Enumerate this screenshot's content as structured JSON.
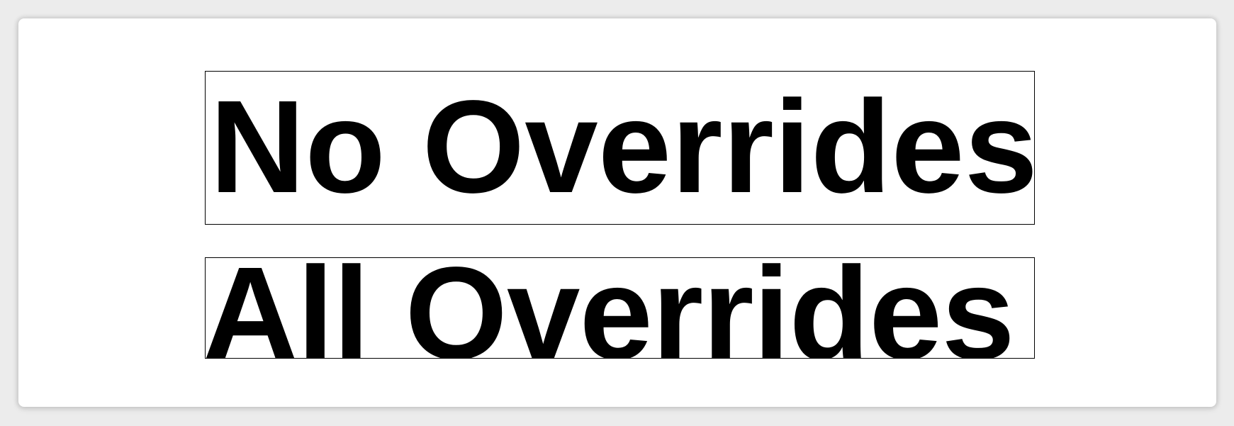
{
  "labels": {
    "no_overrides": "No Overrides",
    "all_overrides": "All Overrides"
  },
  "colors": {
    "background": "#ececec",
    "panel": "#ffffff",
    "text": "#000000",
    "border": "#000000"
  }
}
